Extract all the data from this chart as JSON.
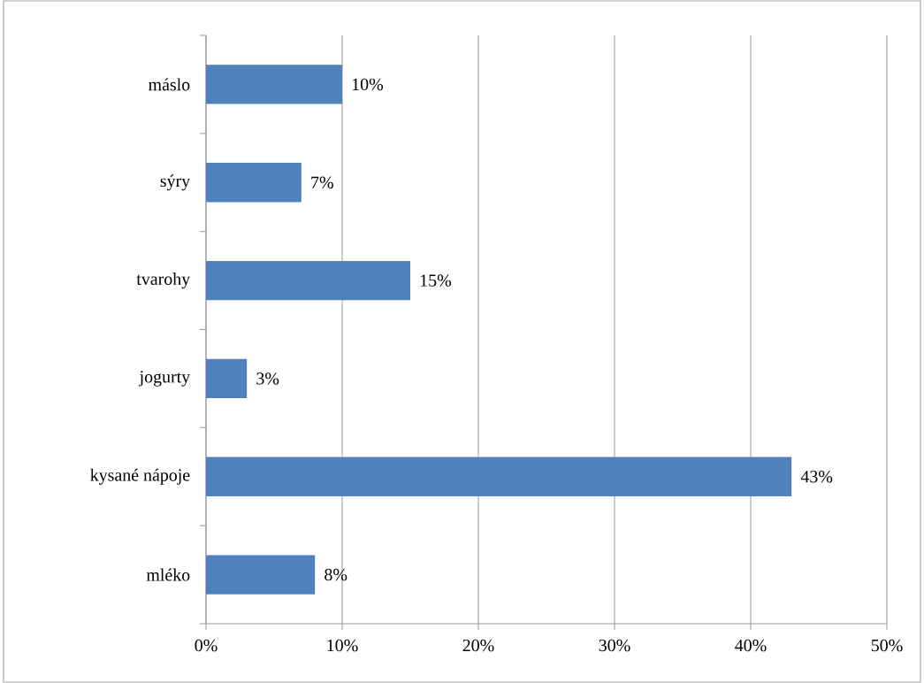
{
  "chart_data": {
    "type": "bar",
    "orientation": "horizontal",
    "categories": [
      "máslo",
      "sýry",
      "tvarohy",
      "jogurty",
      "kysané nápoje",
      "mléko"
    ],
    "values": [
      10,
      7,
      15,
      3,
      43,
      8
    ],
    "value_labels": [
      "10%",
      "7%",
      "15%",
      "3%",
      "43%",
      "8%"
    ],
    "color": "#4f81bd",
    "xlim": [
      0,
      50
    ],
    "xticks": [
      {
        "value": 0,
        "label": "0%"
      },
      {
        "value": 10,
        "label": "10%"
      },
      {
        "value": 20,
        "label": "20%"
      },
      {
        "value": 30,
        "label": "30%"
      },
      {
        "value": 40,
        "label": "40%"
      },
      {
        "value": 50,
        "label": "50%"
      }
    ],
    "grid": "x"
  }
}
